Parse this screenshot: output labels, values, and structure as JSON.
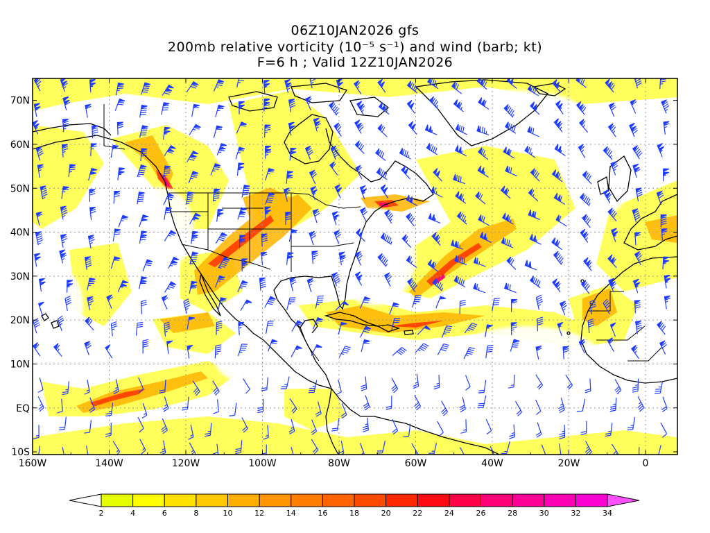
{
  "header": {
    "line1": "06Z10JAN2026 gfs",
    "line2": "200mb relative vorticity (10⁻⁵ s⁻¹) and wind (barb; kt)",
    "line3": "F=6 h ; Valid 12Z10JAN2026"
  },
  "axes": {
    "x_ticks": [
      "160W",
      "140W",
      "120W",
      "100W",
      "80W",
      "60W",
      "40W",
      "20W",
      "0"
    ],
    "y_ticks": [
      "70N",
      "60N",
      "50N",
      "40N",
      "30N",
      "20N",
      "10N",
      "EQ",
      "10S"
    ]
  },
  "colorbar": {
    "labels": [
      "2",
      "4",
      "6",
      "8",
      "10",
      "12",
      "14",
      "16",
      "18",
      "20",
      "22",
      "24",
      "26",
      "28",
      "30",
      "32",
      "34"
    ],
    "colors": [
      "#e6ff00",
      "#ffff00",
      "#ffe100",
      "#ffc800",
      "#ffaf00",
      "#ff9600",
      "#ff7d00",
      "#ff6400",
      "#ff4b00",
      "#ff2800",
      "#ff0a14",
      "#ff0046",
      "#ff0078",
      "#ff0096",
      "#ff00b4",
      "#ff00d2",
      "#ff00ff"
    ],
    "over_color": "#ff50ff"
  },
  "style": {
    "barb_color": "#1e3cff",
    "coast_color": "#000000",
    "grid_color": "#999999"
  }
}
